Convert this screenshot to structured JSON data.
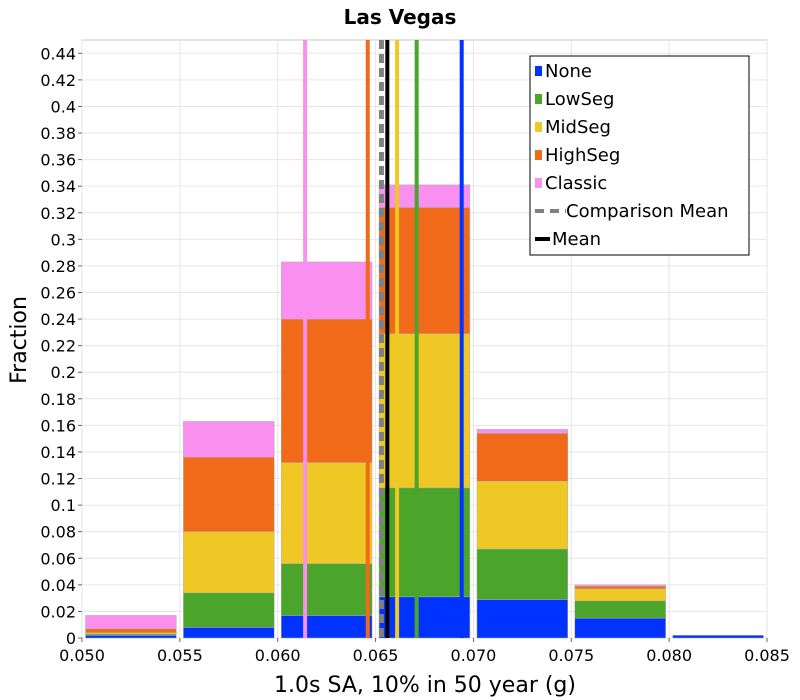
{
  "chart_data": {
    "type": "bar",
    "title": "Las Vegas",
    "xlabel": "1.0s SA, 10% in 50 year (g)",
    "ylabel": "Fraction",
    "xlim": [
      0.05,
      0.085
    ],
    "ylim": [
      0,
      0.45
    ],
    "x_ticks": [
      "0.050",
      "0.055",
      "0.060",
      "0.065",
      "0.070",
      "0.075",
      "0.080",
      "0.085"
    ],
    "y_ticks": [
      "0",
      "0.02",
      "0.04",
      "0.06",
      "0.08",
      "0.1",
      "0.12",
      "0.14",
      "0.16",
      "0.18",
      "0.2",
      "0.22",
      "0.24",
      "0.26",
      "0.28",
      "0.3",
      "0.32",
      "0.34",
      "0.36",
      "0.38",
      "0.4",
      "0.42",
      "0.44"
    ],
    "grid": true,
    "stacked": true,
    "bin_width": 0.005,
    "bins": [
      0.05,
      0.055,
      0.06,
      0.065,
      0.07,
      0.075,
      0.08
    ],
    "series": [
      {
        "name": "None",
        "color": "#0033ff",
        "values": [
          0.002,
          0.008,
          0.017,
          0.031,
          0.029,
          0.015,
          0.002
        ]
      },
      {
        "name": "LowSeg",
        "color": "#4aa52a",
        "values": [
          0.001,
          0.026,
          0.039,
          0.082,
          0.038,
          0.013,
          0.0
        ]
      },
      {
        "name": "MidSeg",
        "color": "#f0c825",
        "values": [
          0.001,
          0.046,
          0.076,
          0.116,
          0.051,
          0.009,
          0.0
        ]
      },
      {
        "name": "HighSeg",
        "color": "#f06a1a",
        "values": [
          0.003,
          0.056,
          0.108,
          0.095,
          0.036,
          0.002,
          0.0
        ]
      },
      {
        "name": "Classic",
        "color": "#f990f0",
        "values": [
          0.01,
          0.027,
          0.043,
          0.017,
          0.003,
          0.001,
          0.0
        ]
      }
    ],
    "vlines": [
      {
        "name": "Classic",
        "x": 0.0614,
        "color": "#f990f0",
        "style": "solid"
      },
      {
        "name": "HighSeg",
        "x": 0.0646,
        "color": "#f06a1a",
        "style": "solid"
      },
      {
        "name": "Comparison Mean",
        "x": 0.0653,
        "color": "#808080",
        "style": "dashed"
      },
      {
        "name": "Mean",
        "x": 0.0656,
        "color": "#000000",
        "style": "solid"
      },
      {
        "name": "MidSeg",
        "x": 0.0661,
        "color": "#f0c825",
        "style": "solid"
      },
      {
        "name": "LowSeg",
        "x": 0.0671,
        "color": "#4aa52a",
        "style": "solid"
      },
      {
        "name": "None",
        "x": 0.0694,
        "color": "#0033ff",
        "style": "solid"
      }
    ],
    "legend": {
      "position": "top-right",
      "entries": [
        {
          "label": "None",
          "color": "#0033ff",
          "kind": "box"
        },
        {
          "label": "LowSeg",
          "color": "#4aa52a",
          "kind": "box"
        },
        {
          "label": "MidSeg",
          "color": "#f0c825",
          "kind": "box"
        },
        {
          "label": "HighSeg",
          "color": "#f06a1a",
          "kind": "box"
        },
        {
          "label": "Classic",
          "color": "#f990f0",
          "kind": "box"
        },
        {
          "label": "Comparison Mean",
          "color": "#808080",
          "kind": "dashed"
        },
        {
          "label": "Mean",
          "color": "#000000",
          "kind": "line"
        }
      ]
    }
  }
}
